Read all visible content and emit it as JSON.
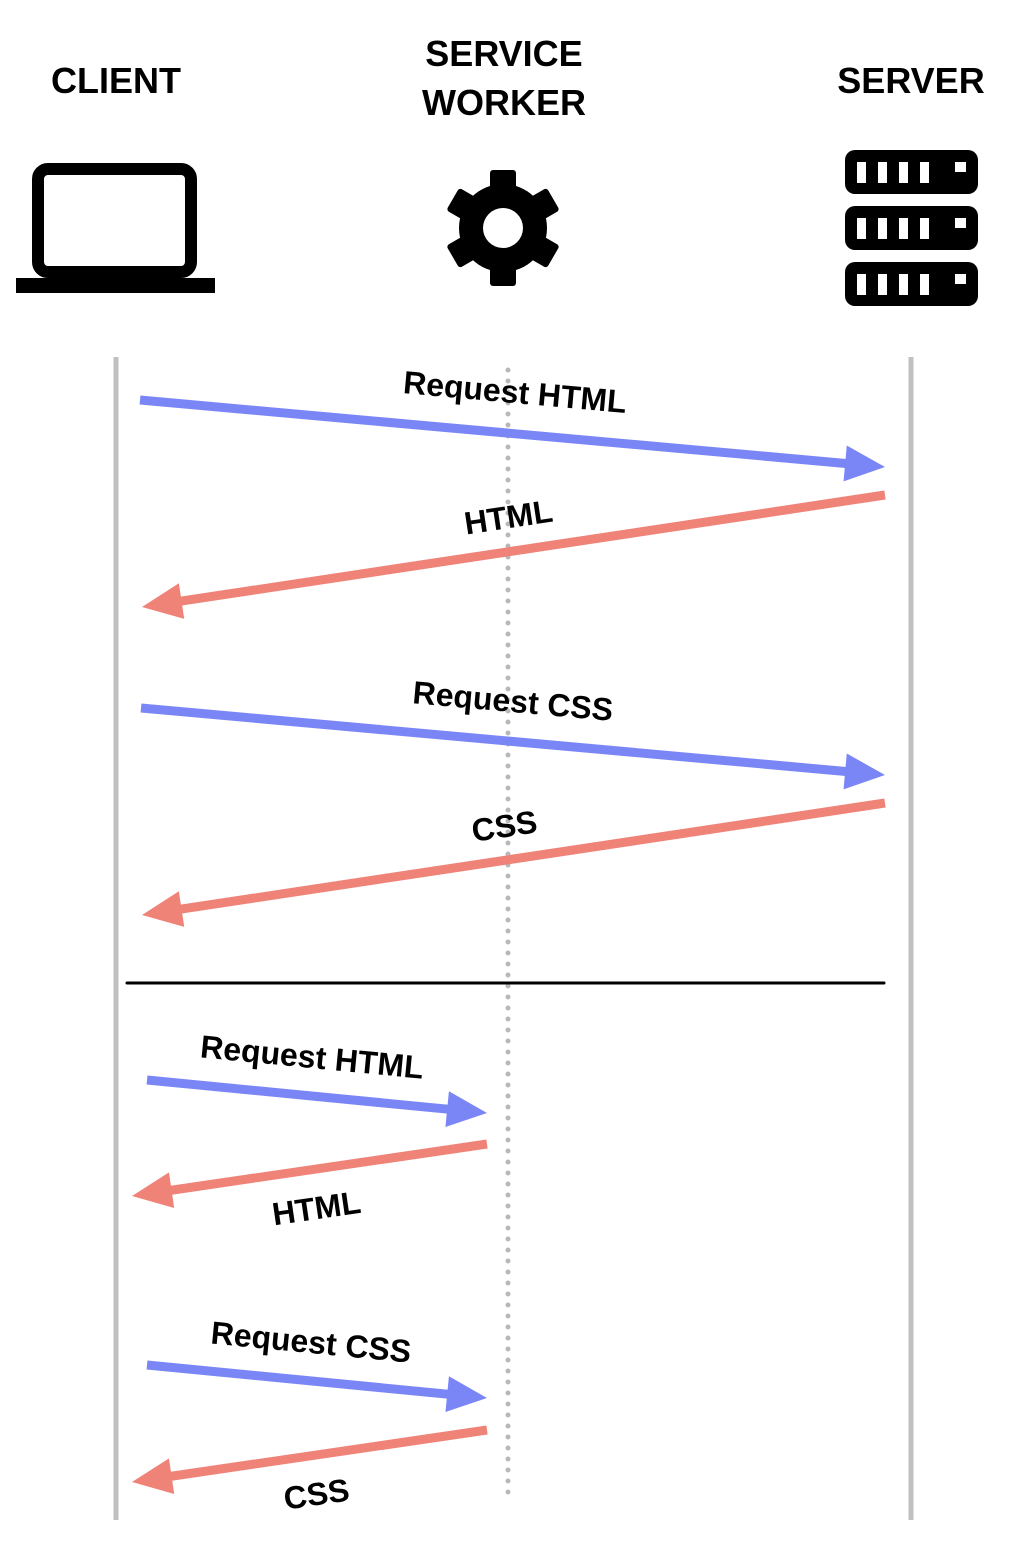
{
  "columns": {
    "client": "CLIENT",
    "service_worker_line1": "SERVICE",
    "service_worker_line2": "WORKER",
    "server": "SERVER"
  },
  "icons": {
    "client": "laptop-icon",
    "service_worker": "gear-icon",
    "server": "server-rack-icon"
  },
  "colors": {
    "request": "#7b86f6",
    "response": "#f08378",
    "lifeline": "#c0c0c0"
  },
  "messages": {
    "without_sw": [
      {
        "label": "Request HTML",
        "kind": "request"
      },
      {
        "label": "HTML",
        "kind": "response"
      },
      {
        "label": "Request CSS",
        "kind": "request"
      },
      {
        "label": "CSS",
        "kind": "response"
      }
    ],
    "with_sw": [
      {
        "label": "Request HTML",
        "kind": "request"
      },
      {
        "label": "HTML",
        "kind": "response"
      },
      {
        "label": "Request CSS",
        "kind": "request"
      },
      {
        "label": "CSS",
        "kind": "response"
      }
    ]
  }
}
